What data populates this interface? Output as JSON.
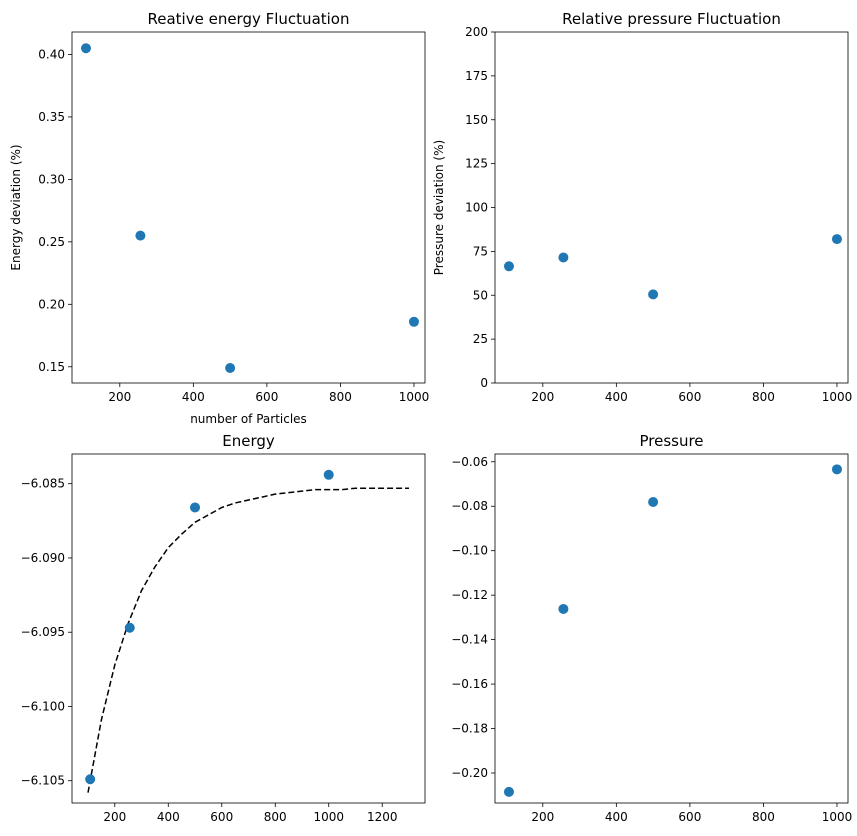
{
  "chart_data": [
    {
      "type": "scatter",
      "title": "Reative energy Fluctuation",
      "xlabel": "number of Particles",
      "ylabel": "Energy deviation (%)",
      "xlim": [
        70,
        1030
      ],
      "ylim": [
        0.137,
        0.418
      ],
      "xticks": [
        200,
        400,
        600,
        800,
        1000
      ],
      "xtick_labels": [
        "200",
        "400",
        "600",
        "800",
        "1000"
      ],
      "yticks": [
        0.15,
        0.2,
        0.25,
        0.3,
        0.35,
        0.4
      ],
      "ytick_labels": [
        "0.15",
        "0.20",
        "0.25",
        "0.30",
        "0.35",
        "0.40"
      ],
      "x": [
        108,
        256,
        500,
        1000
      ],
      "y": [
        0.405,
        0.255,
        0.149,
        0.186
      ],
      "marker_color": "#1f77b4",
      "grid": false
    },
    {
      "type": "scatter",
      "title": "Relative pressure Fluctuation",
      "xlabel": "",
      "ylabel": "Pressure deviation (%)",
      "xlim": [
        70,
        1030
      ],
      "ylim": [
        0,
        200
      ],
      "xticks": [
        200,
        400,
        600,
        800,
        1000
      ],
      "xtick_labels": [
        "200",
        "400",
        "600",
        "800",
        "1000"
      ],
      "yticks": [
        0,
        25,
        50,
        75,
        100,
        125,
        150,
        175,
        200
      ],
      "ytick_labels": [
        "0",
        "25",
        "50",
        "75",
        "100",
        "125",
        "150",
        "175",
        "200"
      ],
      "x": [
        108,
        256,
        500,
        1000
      ],
      "y": [
        66.5,
        71.5,
        50.5,
        82
      ],
      "marker_color": "#1f77b4",
      "grid": false
    },
    {
      "type": "scatter",
      "title": "Energy",
      "xlabel": "",
      "ylabel": "",
      "xlim": [
        40,
        1360
      ],
      "ylim": [
        -6.1065,
        -6.083
      ],
      "xticks": [
        200,
        400,
        600,
        800,
        1000,
        1200
      ],
      "xtick_labels": [
        "200",
        "400",
        "600",
        "800",
        "1000",
        "1200"
      ],
      "yticks": [
        -6.105,
        -6.1,
        -6.095,
        -6.09,
        -6.085
      ],
      "ytick_labels": [
        "−6.105",
        "−6.100",
        "−6.095",
        "−6.090",
        "−6.085"
      ],
      "x": [
        108,
        256,
        500,
        1000
      ],
      "y": [
        -6.1049,
        -6.0947,
        -6.0866,
        -6.0844
      ],
      "marker_color": "#1f77b4",
      "fit": {
        "style": "dashed",
        "color": "#000000",
        "x": [
          100,
          150,
          200,
          250,
          300,
          350,
          400,
          450,
          500,
          550,
          600,
          650,
          700,
          750,
          800,
          850,
          900,
          950,
          1000,
          1050,
          1100,
          1150,
          1200,
          1250,
          1300
        ],
        "y": [
          -6.1058,
          -6.1009,
          -6.0972,
          -6.0944,
          -6.0922,
          -6.0906,
          -6.0893,
          -6.0884,
          -6.0876,
          -6.0871,
          -6.0866,
          -6.0863,
          -6.0861,
          -6.0859,
          -6.0857,
          -6.0856,
          -6.0855,
          -6.0854,
          -6.0854,
          -6.0854,
          -6.0853,
          -6.0853,
          -6.0853,
          -6.0853,
          -6.0853
        ]
      },
      "grid": false
    },
    {
      "type": "scatter",
      "title": "Pressure",
      "xlabel": "",
      "ylabel": "",
      "xlim": [
        70,
        1030
      ],
      "ylim": [
        -0.2135,
        -0.0565
      ],
      "xticks": [
        200,
        400,
        600,
        800,
        1000
      ],
      "xtick_labels": [
        "200",
        "400",
        "600",
        "800",
        "1000"
      ],
      "yticks": [
        -0.2,
        -0.18,
        -0.16,
        -0.14,
        -0.12,
        -0.1,
        -0.08,
        -0.06
      ],
      "ytick_labels": [
        "−0.20",
        "−0.18",
        "−0.16",
        "−0.14",
        "−0.12",
        "−0.10",
        "−0.08",
        "−0.06"
      ],
      "x": [
        108,
        256,
        500,
        1000
      ],
      "y": [
        -0.2085,
        -0.1262,
        -0.0781,
        -0.0634
      ],
      "marker_color": "#1f77b4",
      "grid": false
    }
  ]
}
